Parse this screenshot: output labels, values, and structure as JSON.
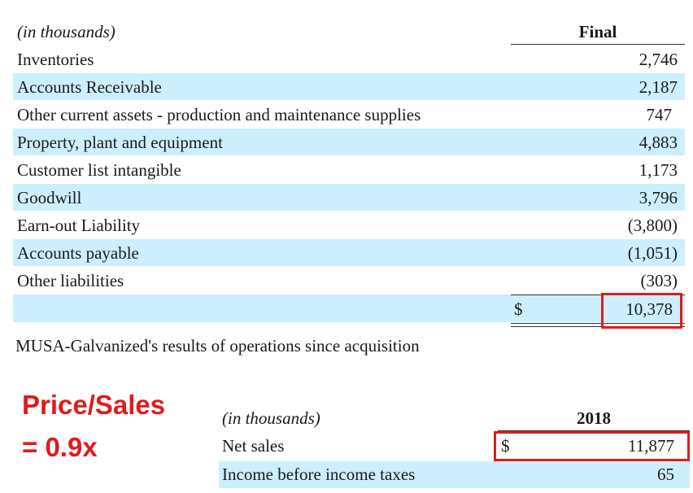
{
  "table1": {
    "unit_label": "(in thousands)",
    "column_header": "Final",
    "rows": [
      {
        "label": "Inventories",
        "value": "2,746"
      },
      {
        "label": "Accounts Receivable",
        "value": "2,187"
      },
      {
        "label": "Other current assets - production and maintenance supplies",
        "value": "747"
      },
      {
        "label": "Property, plant and equipment",
        "value": "4,883"
      },
      {
        "label": "Customer list intangible",
        "value": "1,173"
      },
      {
        "label": "Goodwill",
        "value": "3,796"
      },
      {
        "label": "Earn-out Liability",
        "value": "(3,800)"
      },
      {
        "label": "Accounts payable",
        "value": "(1,051)"
      },
      {
        "label": "Other liabilities",
        "value": "(303)"
      }
    ],
    "total_currency": "$",
    "total_value": "10,378"
  },
  "results_heading": "MUSA-Galvanized's results of operations since acquisition",
  "annotation": {
    "line1": "Price/Sales",
    "line2": "= 0.9x",
    "color": "#e01b1b"
  },
  "table2": {
    "unit_label": "(in thousands)",
    "column_header": "2018",
    "rows": [
      {
        "label": "Net sales",
        "currency": "$",
        "value": "11,877"
      },
      {
        "label": "Income before income taxes",
        "currency": "",
        "value": "65"
      }
    ]
  },
  "colors": {
    "row_shade": "#cdeefc",
    "highlight_box": "#e01b1b"
  }
}
